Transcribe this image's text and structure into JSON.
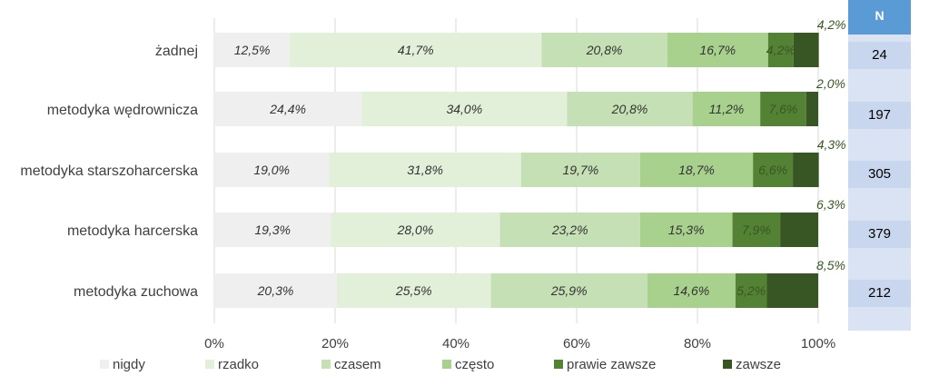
{
  "chart_data": {
    "type": "bar",
    "orientation": "horizontal",
    "stacked": true,
    "percent": true,
    "categories": [
      "żadnej",
      "metodyka wędrownicza",
      "metodyka starszoharcerska",
      "metodyka harcerska",
      "metodyka zuchowa"
    ],
    "series": [
      {
        "name": "nigdy",
        "color": "#efefef",
        "labels": [
          "12,5%",
          "24,4%",
          "19,0%",
          "19,3%",
          "20,3%"
        ],
        "values": [
          12.5,
          24.4,
          19.0,
          19.3,
          20.3
        ]
      },
      {
        "name": "rzadko",
        "color": "#e2f0d9",
        "labels": [
          "41,7%",
          "34,0%",
          "31,8%",
          "28,0%",
          "25,5%"
        ],
        "values": [
          41.7,
          34.0,
          31.8,
          28.0,
          25.5
        ]
      },
      {
        "name": "czasem",
        "color": "#c5e0b4",
        "labels": [
          "20,8%",
          "20,8%",
          "19,7%",
          "23,2%",
          "25,9%"
        ],
        "values": [
          20.8,
          20.8,
          19.7,
          23.2,
          25.9
        ]
      },
      {
        "name": "często",
        "color": "#a9d18e",
        "labels": [
          "16,7%",
          "11,2%",
          "18,7%",
          "15,3%",
          "14,6%"
        ],
        "values": [
          16.7,
          11.2,
          18.7,
          15.3,
          14.6
        ]
      },
      {
        "name": "prawie zawsze",
        "color": "#548235",
        "labels": [
          "4,2%",
          "7,6%",
          "6,6%",
          "7,9%",
          "5,2%"
        ],
        "values": [
          4.2,
          7.6,
          6.6,
          7.9,
          5.2
        ]
      },
      {
        "name": "zawsze",
        "color": "#375623",
        "labels": [
          "4,2%",
          "2,0%",
          "4,3%",
          "6,3%",
          "8,5%"
        ],
        "values": [
          4.2,
          2.0,
          4.3,
          6.3,
          8.5
        ]
      }
    ],
    "xlim": [
      0,
      100
    ],
    "xticks": [
      "0%",
      "20%",
      "40%",
      "60%",
      "80%",
      "100%"
    ],
    "grid": true,
    "legend": "bottom",
    "n_table": {
      "header": "N",
      "values": [
        "24",
        "197",
        "305",
        "379",
        "212"
      ]
    }
  }
}
